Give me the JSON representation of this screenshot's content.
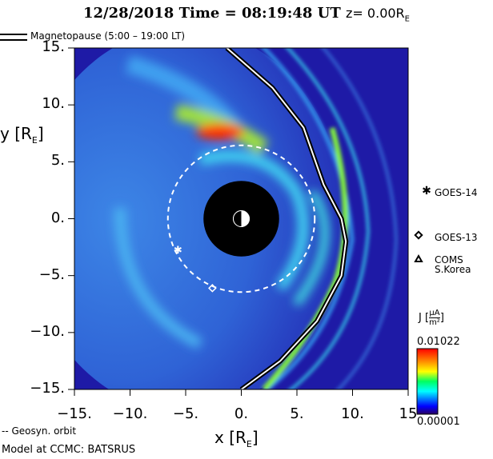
{
  "title": {
    "date": "12/28/2018",
    "time_label": "Time = 08:19:48 UT",
    "z_label": "z= 0.00R",
    "z_sub": "E"
  },
  "legend": {
    "magnetopause": "Magnetopause (5:00 – 19:00 LT)",
    "geosyn_orbit": "-- Geosyn. orbit"
  },
  "footer": "Model at CCMC: BATSRUS",
  "satellites": [
    {
      "marker": "asterisk",
      "label": "GOES-14",
      "x": -5.7,
      "y": -2.7
    },
    {
      "marker": "diamond",
      "label": "GOES-13",
      "x": -2.6,
      "y": -6.1
    },
    {
      "marker": "triangle",
      "label": "COMS",
      "label2": "S.Korea"
    }
  ],
  "colorbar": {
    "title": "J",
    "unit_num": "μA",
    "unit_den": "m²",
    "max": "0.01022",
    "min": "0.00001"
  },
  "chart_data": {
    "type": "heatmap",
    "title": "12/28/2018 Time = 08:19:48 UT z= 0.00RE",
    "xlabel": "x [RE]",
    "ylabel": "y [RE]",
    "xlim": [
      -15,
      15
    ],
    "ylim": [
      -15,
      15
    ],
    "xticks": [
      "-15.",
      "-10.",
      "-5.",
      "0.",
      "5.",
      "10.",
      "15"
    ],
    "yticks": [
      "15.",
      "10.",
      "5.",
      "0.",
      "-5.",
      "-10.",
      "-15."
    ],
    "earth_radius": 3.4,
    "geosyn_radius": 6.6,
    "magnetopause": [
      [
        -1.3,
        15
      ],
      [
        2.8,
        11.5
      ],
      [
        5.6,
        8
      ],
      [
        7.4,
        3
      ],
      [
        9.0,
        0
      ],
      [
        9.4,
        -2
      ],
      [
        9.0,
        -5
      ],
      [
        6.8,
        -9
      ],
      [
        3.5,
        -12.5
      ],
      [
        0,
        -15
      ]
    ],
    "colorscale": {
      "min": 1e-05,
      "max": 0.01022,
      "colors": [
        "#2a0060",
        "#0000ff",
        "#00ffff",
        "#00ff40",
        "#ffff00",
        "#ff8000",
        "#ff0000"
      ]
    }
  }
}
